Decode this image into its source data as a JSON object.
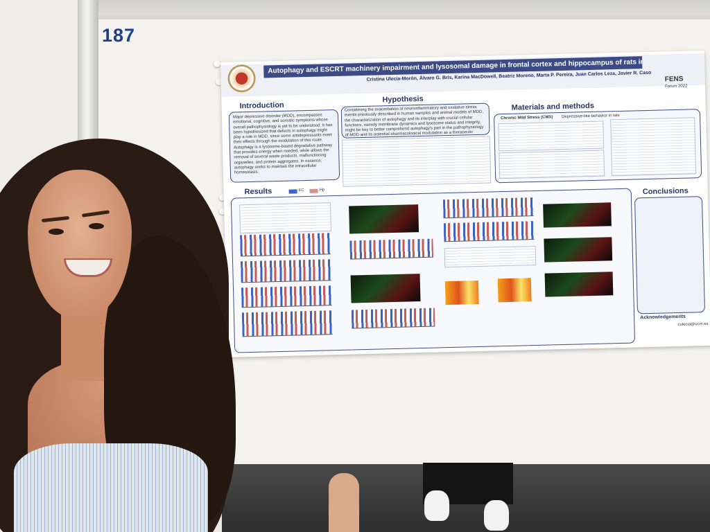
{
  "booth": {
    "number": "187"
  },
  "poster": {
    "title": "Autophagy and ESCRT machinery impairment and lysosomal damage in frontal cortex and hippocampus of rats in a depression-like model",
    "authors": "Cristina Ulecia-Morón, Álvaro G. Bris, Karina MacDowell, Beatriz Moreno, Marta P. Pereira, Juan Carlos Leza, Javier R. Caso",
    "event": "FENS",
    "event_sub": "Forum 2022",
    "sections": {
      "introduction": "Introduction",
      "hypothesis": "Hypothesis",
      "materials": "Materials and methods",
      "results": "Results",
      "conclusions": "Conclusions",
      "acknowledgements": "Acknowledgements"
    },
    "legend": {
      "fc": "FC",
      "hp": "Hp"
    },
    "intro_text": "Major depressive disorder (MDD), encompasses emotional, cognitive, and somatic symptoms whose overall pathophysiology is yet to be understood. It has been hypothesized that defects in autophagy might play a role in MDD, since some antidepressants exert their effects through the modulation of this route. Autophagy is a lysosome-based degradative pathway that provides energy when needed, while allows the removal of several waste products, malfunctioning organelles, and protein aggregates. In essence, autophagy seeks to maintain the intracellular homeostasis.",
    "hypothesis_text": "Considering the exacerbation of neuroinflammatory and oxidative stress events previously described in human samples and animal models of MDD, the characterization of autophagy and its interplay with crucial cellular functions, namely membrane dynamics and lysosome status and integrity, might be key to better comprehend autophagy's part in the pathophysiology of MDD and its potential pharmacological modulation as a therapeutic target.",
    "methods_label": "Chronic Mild Stress (CMS)",
    "methods_sub": "Depressive-like behavior in rats",
    "contact": "culecia@ucm.es"
  }
}
